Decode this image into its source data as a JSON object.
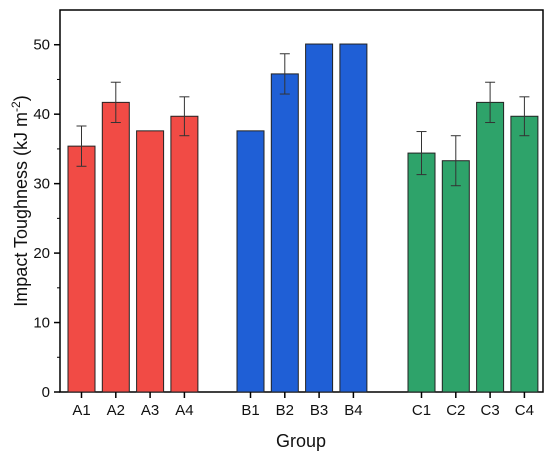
{
  "chart_data": {
    "type": "bar",
    "xlabel": "Group",
    "ylabel": "Impact Toughness (kJ m",
    "ylabel_superscript": "-2",
    "ylabel_close": ")",
    "ylim": [
      0,
      55
    ],
    "yticks": [
      0,
      10,
      20,
      30,
      40,
      50
    ],
    "ytick_labels": [
      "0",
      "10",
      "20",
      "30",
      "40",
      "50"
    ],
    "grid": false,
    "groups": [
      {
        "color": "#f14b45",
        "bars": [
          {
            "category": "A1",
            "value": 35.4,
            "error": 2.9
          },
          {
            "category": "A2",
            "value": 41.7,
            "error": 2.9
          },
          {
            "category": "A3",
            "value": 37.6,
            "error": null
          },
          {
            "category": "A4",
            "value": 39.7,
            "error": 2.8
          }
        ]
      },
      {
        "color": "#1f5fd6",
        "bars": [
          {
            "category": "B1",
            "value": 37.6,
            "error": null
          },
          {
            "category": "B2",
            "value": 45.8,
            "error": 2.9
          },
          {
            "category": "B3",
            "value": 50.1,
            "error": null
          },
          {
            "category": "B4",
            "value": 50.1,
            "error": null
          }
        ]
      },
      {
        "color": "#2ea36a",
        "bars": [
          {
            "category": "C1",
            "value": 34.4,
            "error": 3.1
          },
          {
            "category": "C2",
            "value": 33.3,
            "error": 3.6
          },
          {
            "category": "C3",
            "value": 41.7,
            "error": 2.9
          },
          {
            "category": "C4",
            "value": 39.7,
            "error": 2.8
          }
        ]
      }
    ]
  }
}
